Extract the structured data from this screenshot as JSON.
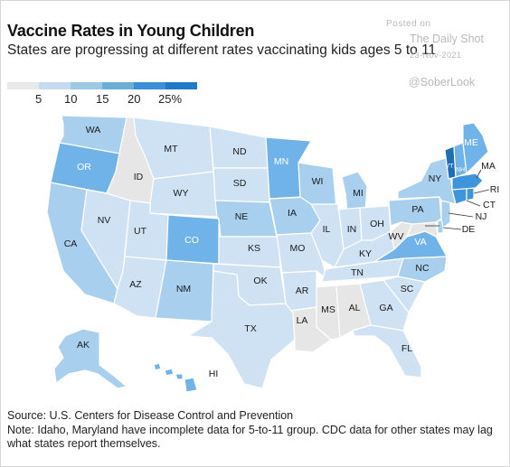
{
  "title": "Vaccine Rates in Young Children",
  "subtitle": "States are progressing at different rates vaccinating kids ages 5 to 11",
  "watermark": {
    "posted": "Posted on",
    "site": "The Daily Shot",
    "date": "23-Nov-2021",
    "handle": "@SoberLook"
  },
  "legend": {
    "labels": [
      "5",
      "10",
      "15",
      "20",
      "25%"
    ],
    "colors": [
      "#e8e8e8",
      "#c6dbef",
      "#9ecae1",
      "#6baed6",
      "#3a8fd6",
      "#1f78c8"
    ]
  },
  "colors": {
    "c0": "#e6e6e6",
    "c1": "#cfe2f3",
    "c2": "#a8cfee",
    "c3": "#6fb3e8",
    "c4": "#3e95dc",
    "c5": "#1f6fb2"
  },
  "states": [
    {
      "id": "WA",
      "bin": 2
    },
    {
      "id": "OR",
      "bin": 3
    },
    {
      "id": "CA",
      "bin": 2
    },
    {
      "id": "ID",
      "bin": 0
    },
    {
      "id": "NV",
      "bin": 1
    },
    {
      "id": "MT",
      "bin": 1
    },
    {
      "id": "WY",
      "bin": 1
    },
    {
      "id": "UT",
      "bin": 1
    },
    {
      "id": "AZ",
      "bin": 1
    },
    {
      "id": "CO",
      "bin": 3
    },
    {
      "id": "NM",
      "bin": 2
    },
    {
      "id": "ND",
      "bin": 1
    },
    {
      "id": "SD",
      "bin": 1
    },
    {
      "id": "NE",
      "bin": 2
    },
    {
      "id": "KS",
      "bin": 1
    },
    {
      "id": "OK",
      "bin": 1
    },
    {
      "id": "TX",
      "bin": 1
    },
    {
      "id": "MN",
      "bin": 3
    },
    {
      "id": "IA",
      "bin": 2
    },
    {
      "id": "MO",
      "bin": 1
    },
    {
      "id": "AR",
      "bin": 1
    },
    {
      "id": "LA",
      "bin": 0
    },
    {
      "id": "WI",
      "bin": 2
    },
    {
      "id": "IL",
      "bin": 1
    },
    {
      "id": "MS",
      "bin": 0
    },
    {
      "id": "AL",
      "bin": 0
    },
    {
      "id": "IN",
      "bin": 1
    },
    {
      "id": "MI",
      "bin": 2
    },
    {
      "id": "OH",
      "bin": 1
    },
    {
      "id": "KY",
      "bin": 1
    },
    {
      "id": "TN",
      "bin": 1
    },
    {
      "id": "GA",
      "bin": 1
    },
    {
      "id": "FL",
      "bin": 1
    },
    {
      "id": "SC",
      "bin": 1
    },
    {
      "id": "NC",
      "bin": 2
    },
    {
      "id": "VA",
      "bin": 3
    },
    {
      "id": "WV",
      "bin": 0
    },
    {
      "id": "PA",
      "bin": 2
    },
    {
      "id": "NY",
      "bin": 2
    },
    {
      "id": "VT",
      "bin": 5
    },
    {
      "id": "NH",
      "bin": 3
    },
    {
      "id": "ME",
      "bin": 3
    },
    {
      "id": "MA",
      "bin": 4
    },
    {
      "id": "RI",
      "bin": 4
    },
    {
      "id": "CT",
      "bin": 4
    },
    {
      "id": "NJ",
      "bin": 2
    },
    {
      "id": "DE",
      "bin": 2
    },
    {
      "id": "MD",
      "bin": 0
    },
    {
      "id": "AK",
      "bin": 2
    },
    {
      "id": "HI",
      "bin": 3
    }
  ],
  "source": "Source: U.S. Centers for Disease Control and Prevention",
  "note": "Note: Idaho, Maryland have incomplete data for 5-to-11 group. CDC data for other states may lag what states report themselves."
}
